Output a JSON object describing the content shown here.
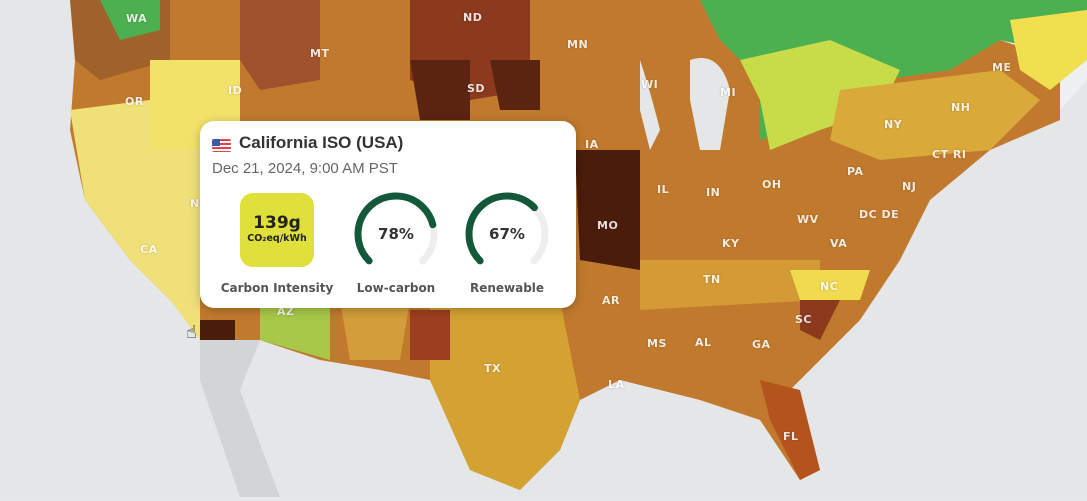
{
  "map": {
    "state_labels": [
      "WA",
      "MT",
      "ND",
      "MN",
      "OR",
      "ID",
      "SD",
      "WI",
      "MI",
      "ME",
      "NY",
      "NH",
      "CT RI",
      "IA",
      "PA",
      "NJ",
      "IL",
      "IN",
      "OH",
      "MO",
      "KY",
      "WV",
      "DC DE",
      "VA",
      "CA",
      "N",
      "TN",
      "AR",
      "NC",
      "SC",
      "MS",
      "AL",
      "GA",
      "TX",
      "LA",
      "FL",
      "AZ"
    ]
  },
  "tooltip": {
    "flag_icon": "us-flag-icon",
    "zone_name": "California ISO (USA)",
    "datetime": "Dec 21, 2024, 9:00 AM PST",
    "carbon_intensity": {
      "value": "139g",
      "unit": "CO₂eq/kWh",
      "label": "Carbon Intensity",
      "color": "#dfe03a"
    },
    "low_carbon": {
      "value": "78%",
      "percent": 78,
      "label": "Low-carbon"
    },
    "renewable": {
      "value": "67%",
      "percent": 67,
      "label": "Renewable"
    },
    "gauge_color": "#14583a"
  }
}
